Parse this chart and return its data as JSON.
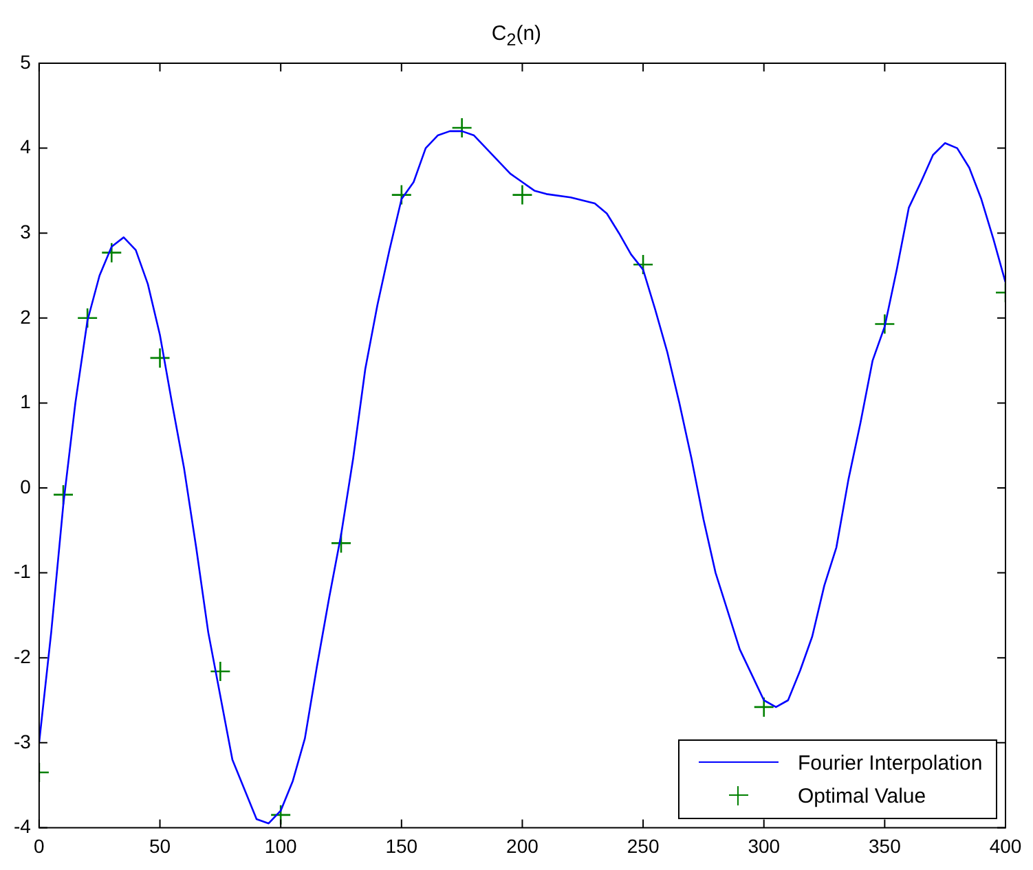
{
  "chart_data": {
    "type": "line",
    "title": "C$_{2}$(n)",
    "xlim": [
      0,
      400
    ],
    "ylim": [
      -4,
      5
    ],
    "xticks": [
      0,
      50,
      100,
      150,
      200,
      250,
      300,
      350,
      400
    ],
    "yticks": [
      -4,
      -3,
      -2,
      -1,
      0,
      1,
      2,
      3,
      4,
      5
    ],
    "legend": "bottom right",
    "series": [
      {
        "type": "line",
        "name": "Fourier Interpolation",
        "color": "#0000ff",
        "marker": "none",
        "line_style": "solid",
        "x": [
          0,
          5,
          10,
          15,
          20,
          25,
          30,
          35,
          40,
          45,
          50,
          55,
          60,
          65,
          70,
          75,
          80,
          85,
          90,
          95,
          100,
          105,
          110,
          115,
          120,
          125,
          130,
          135,
          140,
          145,
          150,
          155,
          160,
          165,
          170,
          175,
          180,
          185,
          190,
          195,
          200,
          205,
          210,
          220,
          230,
          235,
          240,
          245,
          250,
          255,
          260,
          265,
          270,
          275,
          280,
          285,
          290,
          295,
          300,
          305,
          310,
          315,
          320,
          325,
          330,
          335,
          340,
          345,
          350,
          355,
          360,
          365,
          370,
          375,
          380,
          385,
          390,
          395,
          400
        ],
        "values": [
          -3.0,
          -1.7,
          -0.2,
          1.0,
          1.97,
          2.5,
          2.84,
          2.95,
          2.8,
          2.4,
          1.8,
          1.0,
          0.23,
          -0.7,
          -1.7,
          -2.45,
          -3.2,
          -3.55,
          -3.9,
          -3.95,
          -3.8,
          -3.45,
          -2.95,
          -2.1,
          -1.3,
          -0.55,
          0.35,
          1.4,
          2.15,
          2.8,
          3.4,
          3.6,
          4.0,
          4.15,
          4.2,
          4.2,
          4.15,
          4.0,
          3.85,
          3.7,
          3.6,
          3.5,
          3.46,
          3.42,
          3.35,
          3.23,
          3.0,
          2.75,
          2.57,
          2.1,
          1.6,
          1.0,
          0.35,
          -0.37,
          -1.0,
          -1.45,
          -1.9,
          -2.2,
          -2.5,
          -2.58,
          -2.5,
          -2.15,
          -1.75,
          -1.15,
          -0.7,
          0.1,
          0.77,
          1.5,
          1.9,
          2.57,
          3.3,
          3.6,
          3.92,
          4.06,
          4.0,
          3.77,
          3.4,
          2.93,
          2.42
        ]
      },
      {
        "type": "scatter",
        "name": "Optimal Value",
        "color": "#008000",
        "marker": "cross",
        "x": [
          0,
          10,
          20,
          30,
          50,
          75,
          100,
          125,
          150,
          175,
          200,
          250,
          300,
          350,
          400
        ],
        "values": [
          -3.35,
          -0.08,
          2.0,
          2.77,
          1.53,
          -2.16,
          -3.85,
          -0.65,
          3.45,
          4.24,
          3.45,
          2.63,
          -2.58,
          1.93,
          2.3
        ]
      }
    ]
  }
}
